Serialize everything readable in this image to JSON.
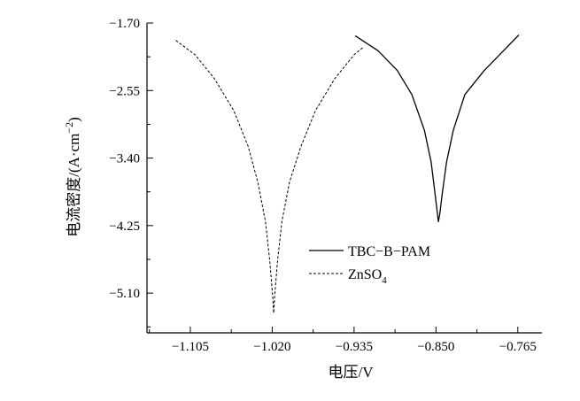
{
  "chart_data": {
    "type": "line",
    "xlabel": "电压/V",
    "ylabel": "电流密度/(A·cm",
    "ylabel_sup": "−2",
    "ylabel_close": ")",
    "xlim": [
      -1.15,
      -0.74
    ],
    "ylim": [
      -5.6,
      -1.7
    ],
    "x_ticks": [
      -1.105,
      -1.02,
      -0.935,
      -0.85,
      -0.765
    ],
    "x_tick_labels": [
      "−1.105",
      "−1.020",
      "−0.935",
      "−0.850",
      "−0.765"
    ],
    "y_ticks": [
      -1.7,
      -2.55,
      -3.4,
      -4.25,
      -5.1
    ],
    "y_tick_labels": [
      "−1.70",
      "−2.55",
      "−3.40",
      "−4.25",
      "−5.10"
    ],
    "grid": false,
    "legend_position": "lower-right",
    "series": [
      {
        "name": "TBC−B−PAM",
        "style": "solid",
        "color": "#000000",
        "x": [
          -0.9338,
          -0.91,
          -0.89,
          -0.875,
          -0.862,
          -0.855,
          -0.851,
          -0.8485,
          -0.8475,
          -0.846,
          -0.8435,
          -0.839,
          -0.832,
          -0.82,
          -0.8,
          -0.78,
          -0.764
        ],
        "y": [
          -1.86,
          -2.05,
          -2.3,
          -2.6,
          -3.05,
          -3.45,
          -3.85,
          -4.1,
          -4.2,
          -4.1,
          -3.85,
          -3.45,
          -3.05,
          -2.6,
          -2.3,
          -2.05,
          -1.85
        ]
      },
      {
        "name": "ZnSO4",
        "name_main": "ZnSO",
        "name_sub": "4",
        "style": "dashed",
        "color": "#000000",
        "x": [
          -1.12,
          -1.1,
          -1.08,
          -1.06,
          -1.045,
          -1.035,
          -1.027,
          -1.0225,
          -1.0195,
          -1.0185,
          -1.0175,
          -1.0145,
          -1.01,
          -1.002,
          -0.99,
          -0.975,
          -0.955,
          -0.935,
          -0.925
        ],
        "y": [
          -1.92,
          -2.1,
          -2.4,
          -2.8,
          -3.25,
          -3.7,
          -4.2,
          -4.7,
          -5.15,
          -5.35,
          -5.15,
          -4.7,
          -4.2,
          -3.7,
          -3.25,
          -2.8,
          -2.4,
          -2.1,
          -2.0
        ]
      }
    ]
  }
}
